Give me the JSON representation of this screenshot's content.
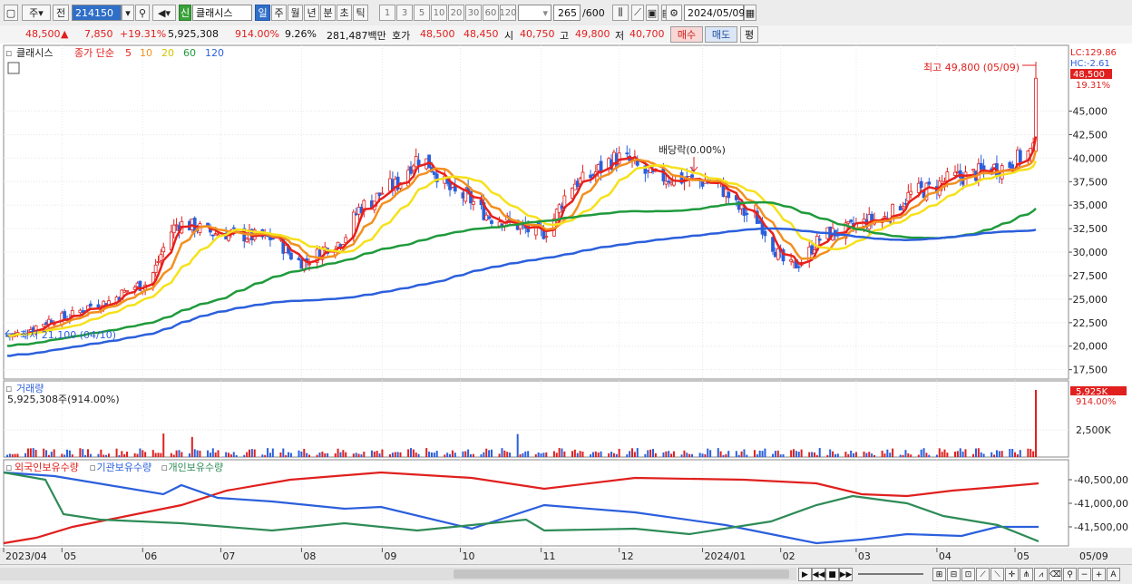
{
  "toolbar": {
    "type_select": "주",
    "scope_select": "전",
    "code": "214150",
    "new_badge": "신",
    "stock_name": "클래시스",
    "period_tabs": [
      "일",
      "주",
      "월",
      "년",
      "분",
      "초",
      "틱"
    ],
    "active_period": "일",
    "intervals": [
      "1",
      "3",
      "5",
      "10",
      "20",
      "30",
      "60",
      "120"
    ],
    "count": "265",
    "count_max": "/600",
    "date": "2024/05/09"
  },
  "info": {
    "price": "48,500",
    "change_arrow": "▲",
    "change": "7,850",
    "change_pct": "+19.31%",
    "volume": "5,925,308",
    "volume_ratio": "914.00%",
    "turnover": "9.26%",
    "amount": "281,487백만",
    "quote_label": "호가",
    "ask": "48,500",
    "bid": "48,450",
    "open_label": "시",
    "open": "40,750",
    "high_label": "고",
    "high": "49,800",
    "low_label": "저",
    "low": "40,700",
    "buy_btn": "매수",
    "sell_btn": "매도",
    "eval_btn": "평"
  },
  "price_panel": {
    "name": "클래시스",
    "ma_title": "종가 단순",
    "ma_periods": [
      "5",
      "10",
      "20",
      "60",
      "120"
    ],
    "ma_colors": [
      "#e8201c",
      "#f2901e",
      "#f6e11b",
      "#1f9a3c",
      "#2b5fdc"
    ],
    "lc": "LC:129.86",
    "hc": "HC:-2.61",
    "last_price": "48,500",
    "last_pct": "19.31%",
    "y_ticks": [
      "45,000",
      "42,500",
      "40,000",
      "37,500",
      "35,000",
      "32,500",
      "30,000",
      "27,500",
      "25,000",
      "22,500",
      "20,000",
      "17,500"
    ],
    "high_note": "최고 49,800 (05/09)",
    "low_note": "최저 21,100 (04/10)",
    "dividend_note": "배당락(0.00%)"
  },
  "volume_panel": {
    "title": "거래량",
    "value": "5,925,308주(914.00%)",
    "badge": "5,925K",
    "badge_pct": "914.00%",
    "y_tick": "2,500K"
  },
  "holding_panel": {
    "series": [
      "외국인보유수량",
      "기관보유수량",
      "개인보유수량"
    ],
    "colors": [
      "#e0201e",
      "#2b5fdc",
      "#2e8b57"
    ],
    "y_ticks": [
      "-40,500,00",
      "-41,000,00",
      "-41,500,00"
    ]
  },
  "x_axis": [
    "2023/04",
    "05",
    "06",
    "07",
    "08",
    "09",
    "10",
    "11",
    "12",
    "2024/01",
    "02",
    "03",
    "04",
    "05",
    "05/09"
  ],
  "chart_data": {
    "type": "candlestick",
    "title": "클래시스",
    "x_range": [
      "2023/04/10",
      "2024/05/09"
    ],
    "ylim": [
      16500,
      52000
    ],
    "close_approx": [
      [
        "2023-04-10",
        21100
      ],
      [
        "2023-05-01",
        23000
      ],
      [
        "2023-05-15",
        24500
      ],
      [
        "2023-06-01",
        26500
      ],
      [
        "2023-06-15",
        33000
      ],
      [
        "2023-07-01",
        32000
      ],
      [
        "2023-07-20",
        31500
      ],
      [
        "2023-08-01",
        29000
      ],
      [
        "2023-08-15",
        31000
      ],
      [
        "2023-08-25",
        35000
      ],
      [
        "2023-09-05",
        37000
      ],
      [
        "2023-09-15",
        40000
      ],
      [
        "2023-10-01",
        36000
      ],
      [
        "2023-10-15",
        33500
      ],
      [
        "2023-11-01",
        32000
      ],
      [
        "2023-11-15",
        37500
      ],
      [
        "2023-12-01",
        40000
      ],
      [
        "2023-12-15",
        38000
      ],
      [
        "2024-01-05",
        37500
      ],
      [
        "2024-01-20",
        34000
      ],
      [
        "2024-02-05",
        28500
      ],
      [
        "2024-02-20",
        32000
      ],
      [
        "2024-03-10",
        33500
      ],
      [
        "2024-03-25",
        36500
      ],
      [
        "2024-04-10",
        38000
      ],
      [
        "2024-04-25",
        39000
      ],
      [
        "2024-05-08",
        40650
      ],
      [
        "2024-05-09",
        48500
      ]
    ]
  }
}
